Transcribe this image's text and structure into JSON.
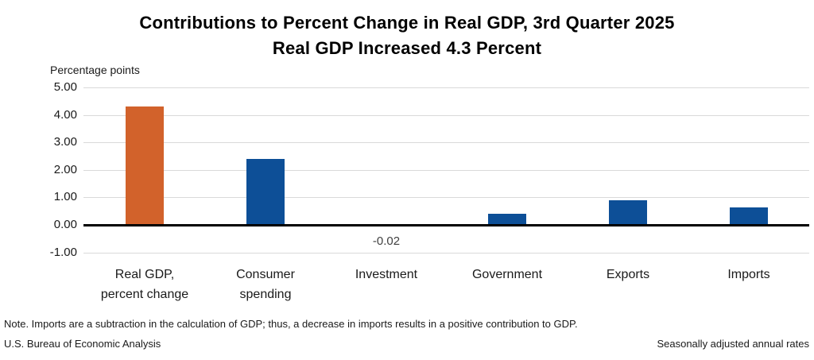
{
  "title": {
    "line1": "Contributions to Percent Change in Real GDP, 3rd Quarter 2025",
    "line2": "Real GDP Increased 4.3 Percent"
  },
  "footer": {
    "note": "Note. Imports are a subtraction in the calculation of GDP; thus, a decrease in imports results in a positive contribution to GDP.",
    "source": "U.S. Bureau of Economic Analysis",
    "rates": "Seasonally adjusted annual rates"
  },
  "chart_data": {
    "type": "bar",
    "title": "Contributions to Percent Change in Real GDP, 3rd Quarter 2025",
    "subtitle": "Real GDP Increased 4.3 Percent",
    "ylabel": "Percentage points",
    "categories": [
      "Real GDP, percent change",
      "Consumer spending",
      "Investment",
      "Government",
      "Exports",
      "Imports"
    ],
    "category_lines": [
      [
        "Real GDP,",
        "percent change"
      ],
      [
        "Consumer",
        "spending"
      ],
      [
        "Investment"
      ],
      [
        "Government"
      ],
      [
        "Exports"
      ],
      [
        "Imports"
      ]
    ],
    "values": [
      4.3,
      2.4,
      -0.02,
      0.4,
      0.9,
      0.65
    ],
    "bar_colors": [
      "#d2622b",
      "#0d4f97",
      "#0d4f97",
      "#0d4f97",
      "#0d4f97",
      "#0d4f97"
    ],
    "accent_orange": "#d2622b",
    "accent_blue": "#0d4f97",
    "ylim": [
      -1,
      5
    ],
    "yticks": [
      5,
      4,
      3,
      2,
      1,
      0,
      -1
    ],
    "ytick_labels": [
      "5.00",
      "4.00",
      "3.00",
      "2.00",
      "1.00",
      "0.00",
      "-1.00"
    ],
    "point_labels": [
      {
        "index": 2,
        "text": "-0.02"
      }
    ],
    "gridline_color": "#d9d9d9",
    "axis_line_color": "#000000",
    "grid": true,
    "legend": "none"
  }
}
